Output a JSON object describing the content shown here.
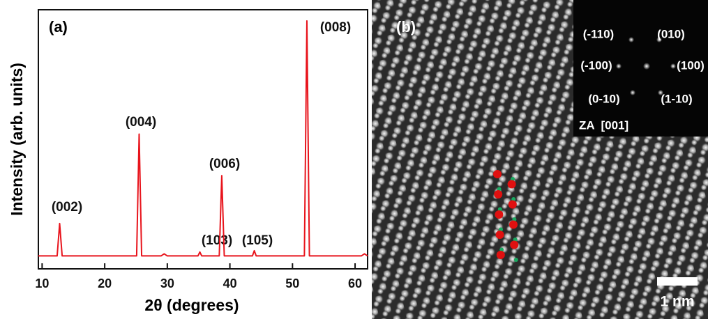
{
  "chart_data": {
    "type": "line",
    "panel_label": "(a)",
    "x_label": "2θ (degrees)",
    "y_label": "Intensity (arb. units)",
    "x": [
      9.4,
      12.4,
      12.8,
      13.2,
      25.1,
      25.5,
      25.9,
      29.0,
      29.5,
      30.0,
      34.9,
      35.2,
      35.5,
      38.3,
      38.7,
      39.1,
      43.6,
      43.9,
      44.2,
      51.9,
      52.3,
      52.7,
      61.0,
      61.5,
      62.0
    ],
    "values": [
      5,
      5,
      17.5,
      5,
      5,
      52,
      5,
      5,
      5.8,
      5,
      5,
      6.5,
      5,
      5,
      36,
      5,
      5,
      7,
      5,
      5,
      95.7,
      5,
      5,
      5.8,
      5
    ],
    "color": "#e8141c",
    "xlim": [
      9.4,
      62
    ],
    "ylim": [
      0,
      100
    ],
    "xticks": [
      10,
      20,
      30,
      40,
      50,
      60
    ],
    "annotations": [
      "(002)",
      "(004)",
      "(103)",
      "(006)",
      "(105)",
      "(008)"
    ]
  },
  "panel_b": {
    "panel_label": "(b)",
    "inset": {
      "spots": [
        "(-110)",
        "(010)",
        "(-100)",
        "(100)",
        "(0-10)",
        "(1-10)"
      ],
      "zone_axis": "ZA  [001]"
    },
    "scale_bar": "1 nm"
  }
}
